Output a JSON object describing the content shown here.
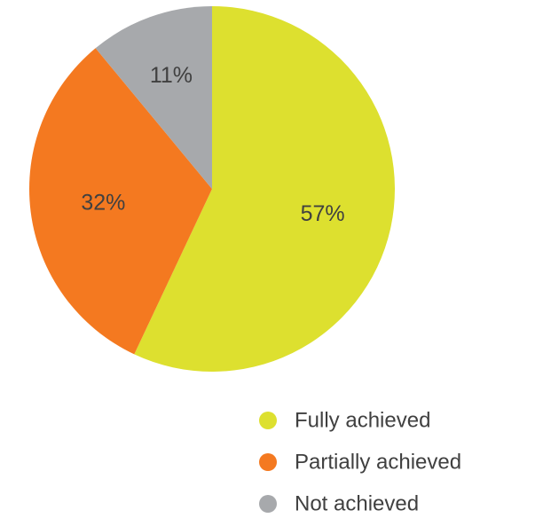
{
  "chart_data": {
    "type": "pie",
    "title": "",
    "legend_position": "bottom-right",
    "slices": [
      {
        "label": "Fully achieved",
        "value": 57,
        "display": "57%",
        "color": "#dde02f"
      },
      {
        "label": "Partially achieved",
        "value": 32,
        "display": "32%",
        "color": "#f47920"
      },
      {
        "label": "Not achieved",
        "value": 11,
        "display": "11%",
        "color": "#a7a9ac"
      }
    ]
  }
}
